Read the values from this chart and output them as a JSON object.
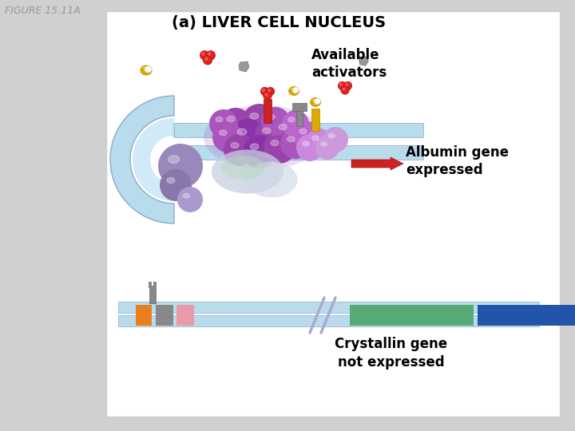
{
  "fig_label": "FIGURE 15.11A",
  "panel_title": "(a) LIVER CELL NUCLEUS",
  "bg_outer": "#d0d0d0",
  "bg_inner": "#ffffff",
  "text_available_activators": "Available\nactivators",
  "text_albumin": "Albumin gene\nexpressed",
  "text_crystallin": "Crystallin gene\nnot expressed",
  "title_fontsize": 14,
  "label_fontsize": 12,
  "fig_label_fontsize": 9,
  "dna_color": "#b8dcec",
  "dna_color2": "#d0eaf8",
  "purple_dark": "#9944aa",
  "purple_mid": "#aa66bb",
  "purple_light": "#cc99dd",
  "purple_lavender": "#b8a0cc",
  "gray_blob": "#b0b8c8",
  "red_act": "#cc2222",
  "yellow_act": "#ddaa00",
  "gray_act": "#999999",
  "arrow_color": "#cc2222",
  "cryst_orange": "#e88020",
  "cryst_gray": "#888888",
  "cryst_pink": "#e899aa",
  "cryst_green": "#55aa77",
  "cryst_blue": "#2255aa"
}
